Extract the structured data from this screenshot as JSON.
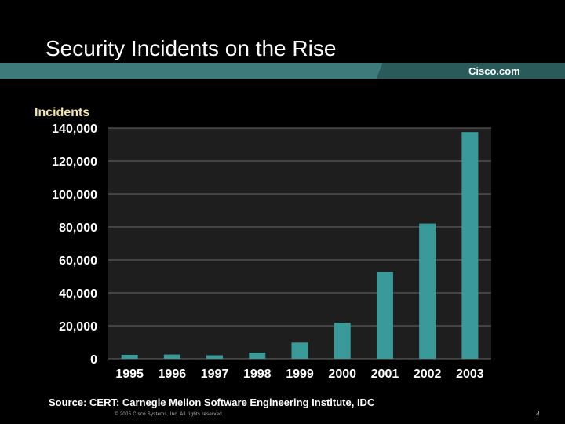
{
  "slide": {
    "title": "Security Incidents on the Rise",
    "brand": "Cisco.com",
    "source": "Source: CERT: Carnegie Mellon Software Engineering Institute, IDC",
    "copyright": "© 2005 Cisco Systems, Inc. All rights reserved.",
    "page_number": "4"
  },
  "colors": {
    "background": "#000000",
    "plot_area": "#1e1e1e",
    "bar": "#3a9a9a",
    "band": "#3f7a7a",
    "ylabel": "#f2e9a8"
  },
  "chart_data": {
    "type": "bar",
    "title": "",
    "xlabel": "",
    "ylabel": "Incidents",
    "categories": [
      "1995",
      "1996",
      "1997",
      "1998",
      "1999",
      "2000",
      "2001",
      "2002",
      "2003"
    ],
    "values": [
      2412,
      2573,
      2134,
      3734,
      9859,
      21756,
      52658,
      82094,
      137529
    ],
    "ylim": [
      0,
      140000
    ],
    "yticks": [
      0,
      20000,
      40000,
      60000,
      80000,
      100000,
      120000,
      140000
    ],
    "ytick_labels": [
      "0",
      "20,000",
      "40,000",
      "60,000",
      "80,000",
      "100,000",
      "120,000",
      "140,000"
    ],
    "grid": true,
    "legend": "none"
  }
}
